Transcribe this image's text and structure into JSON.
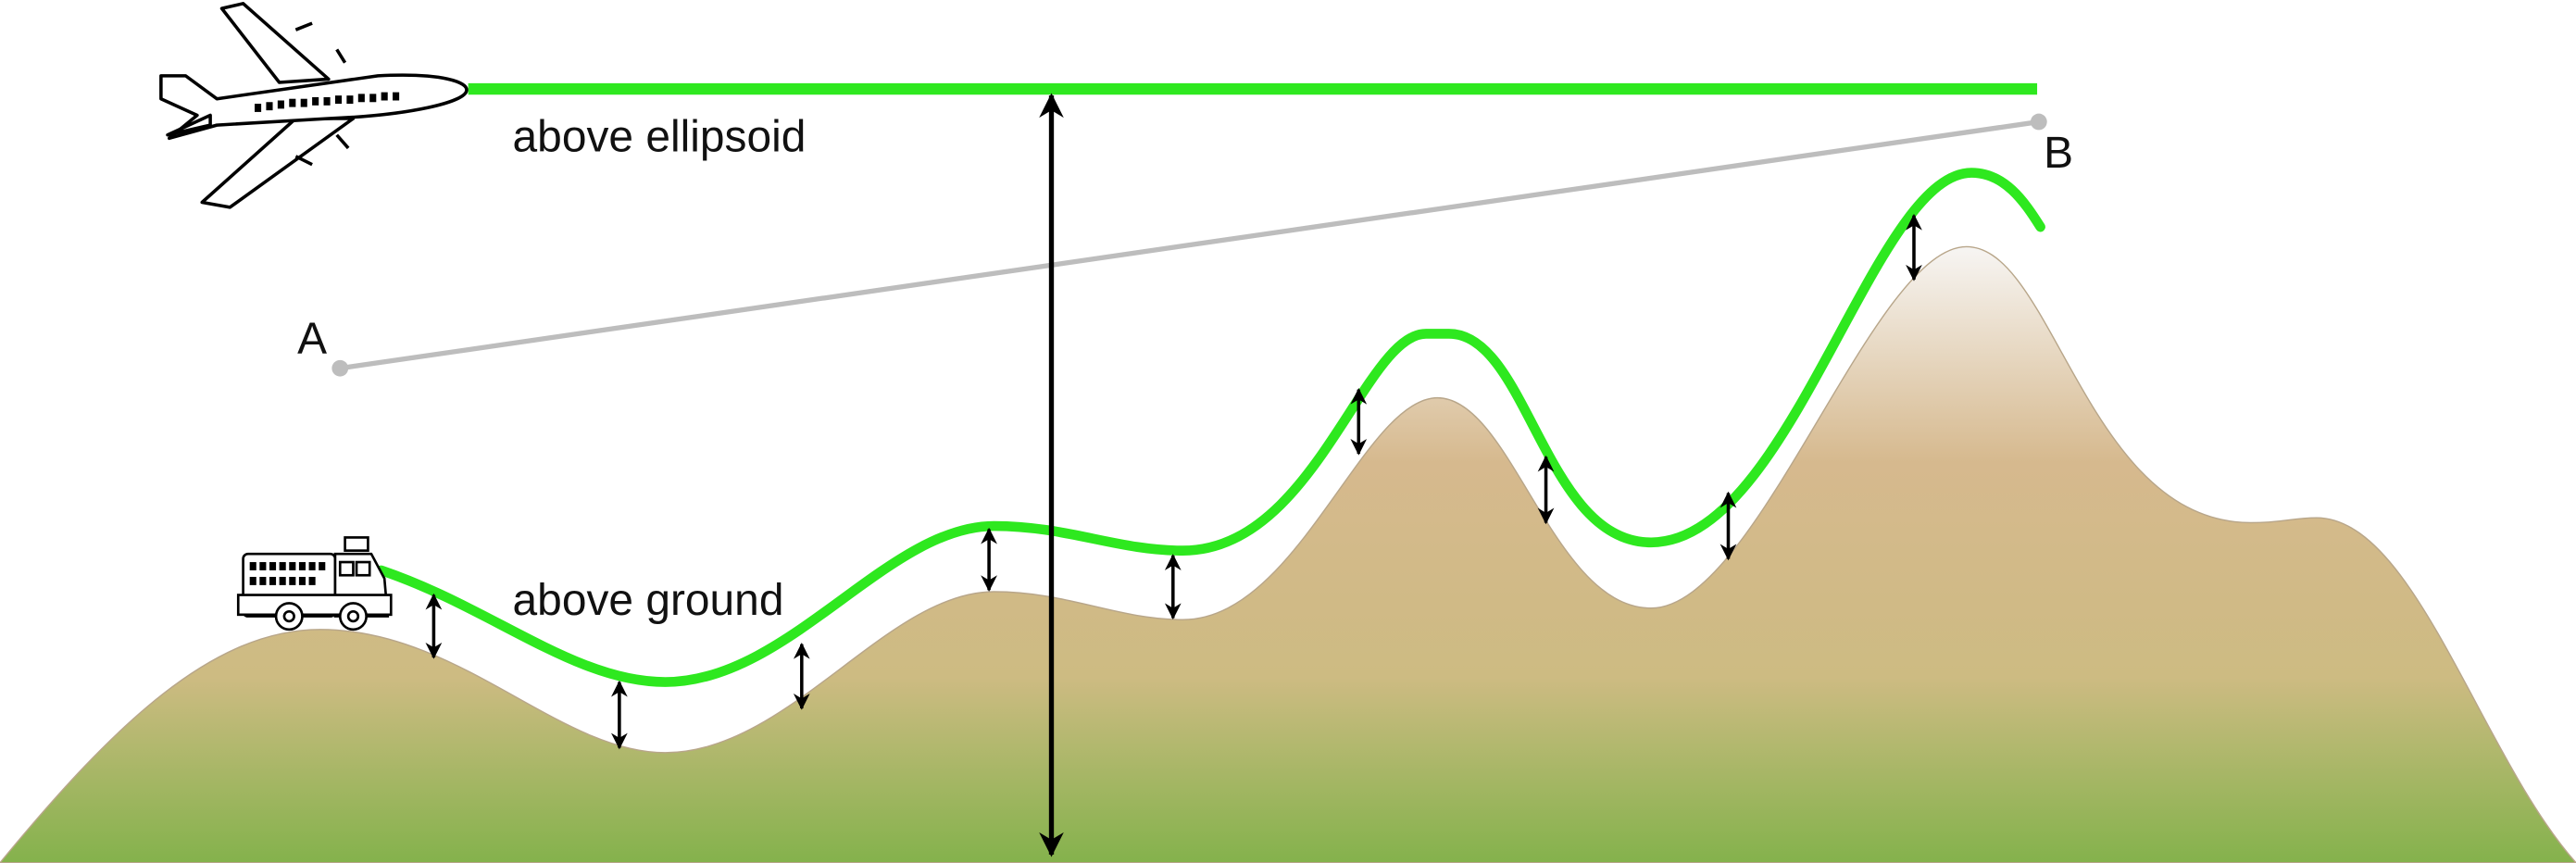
{
  "labels": {
    "ellipsoid": "above ellipsoid",
    "ground": "above ground",
    "a": "A",
    "b": "B"
  }
}
